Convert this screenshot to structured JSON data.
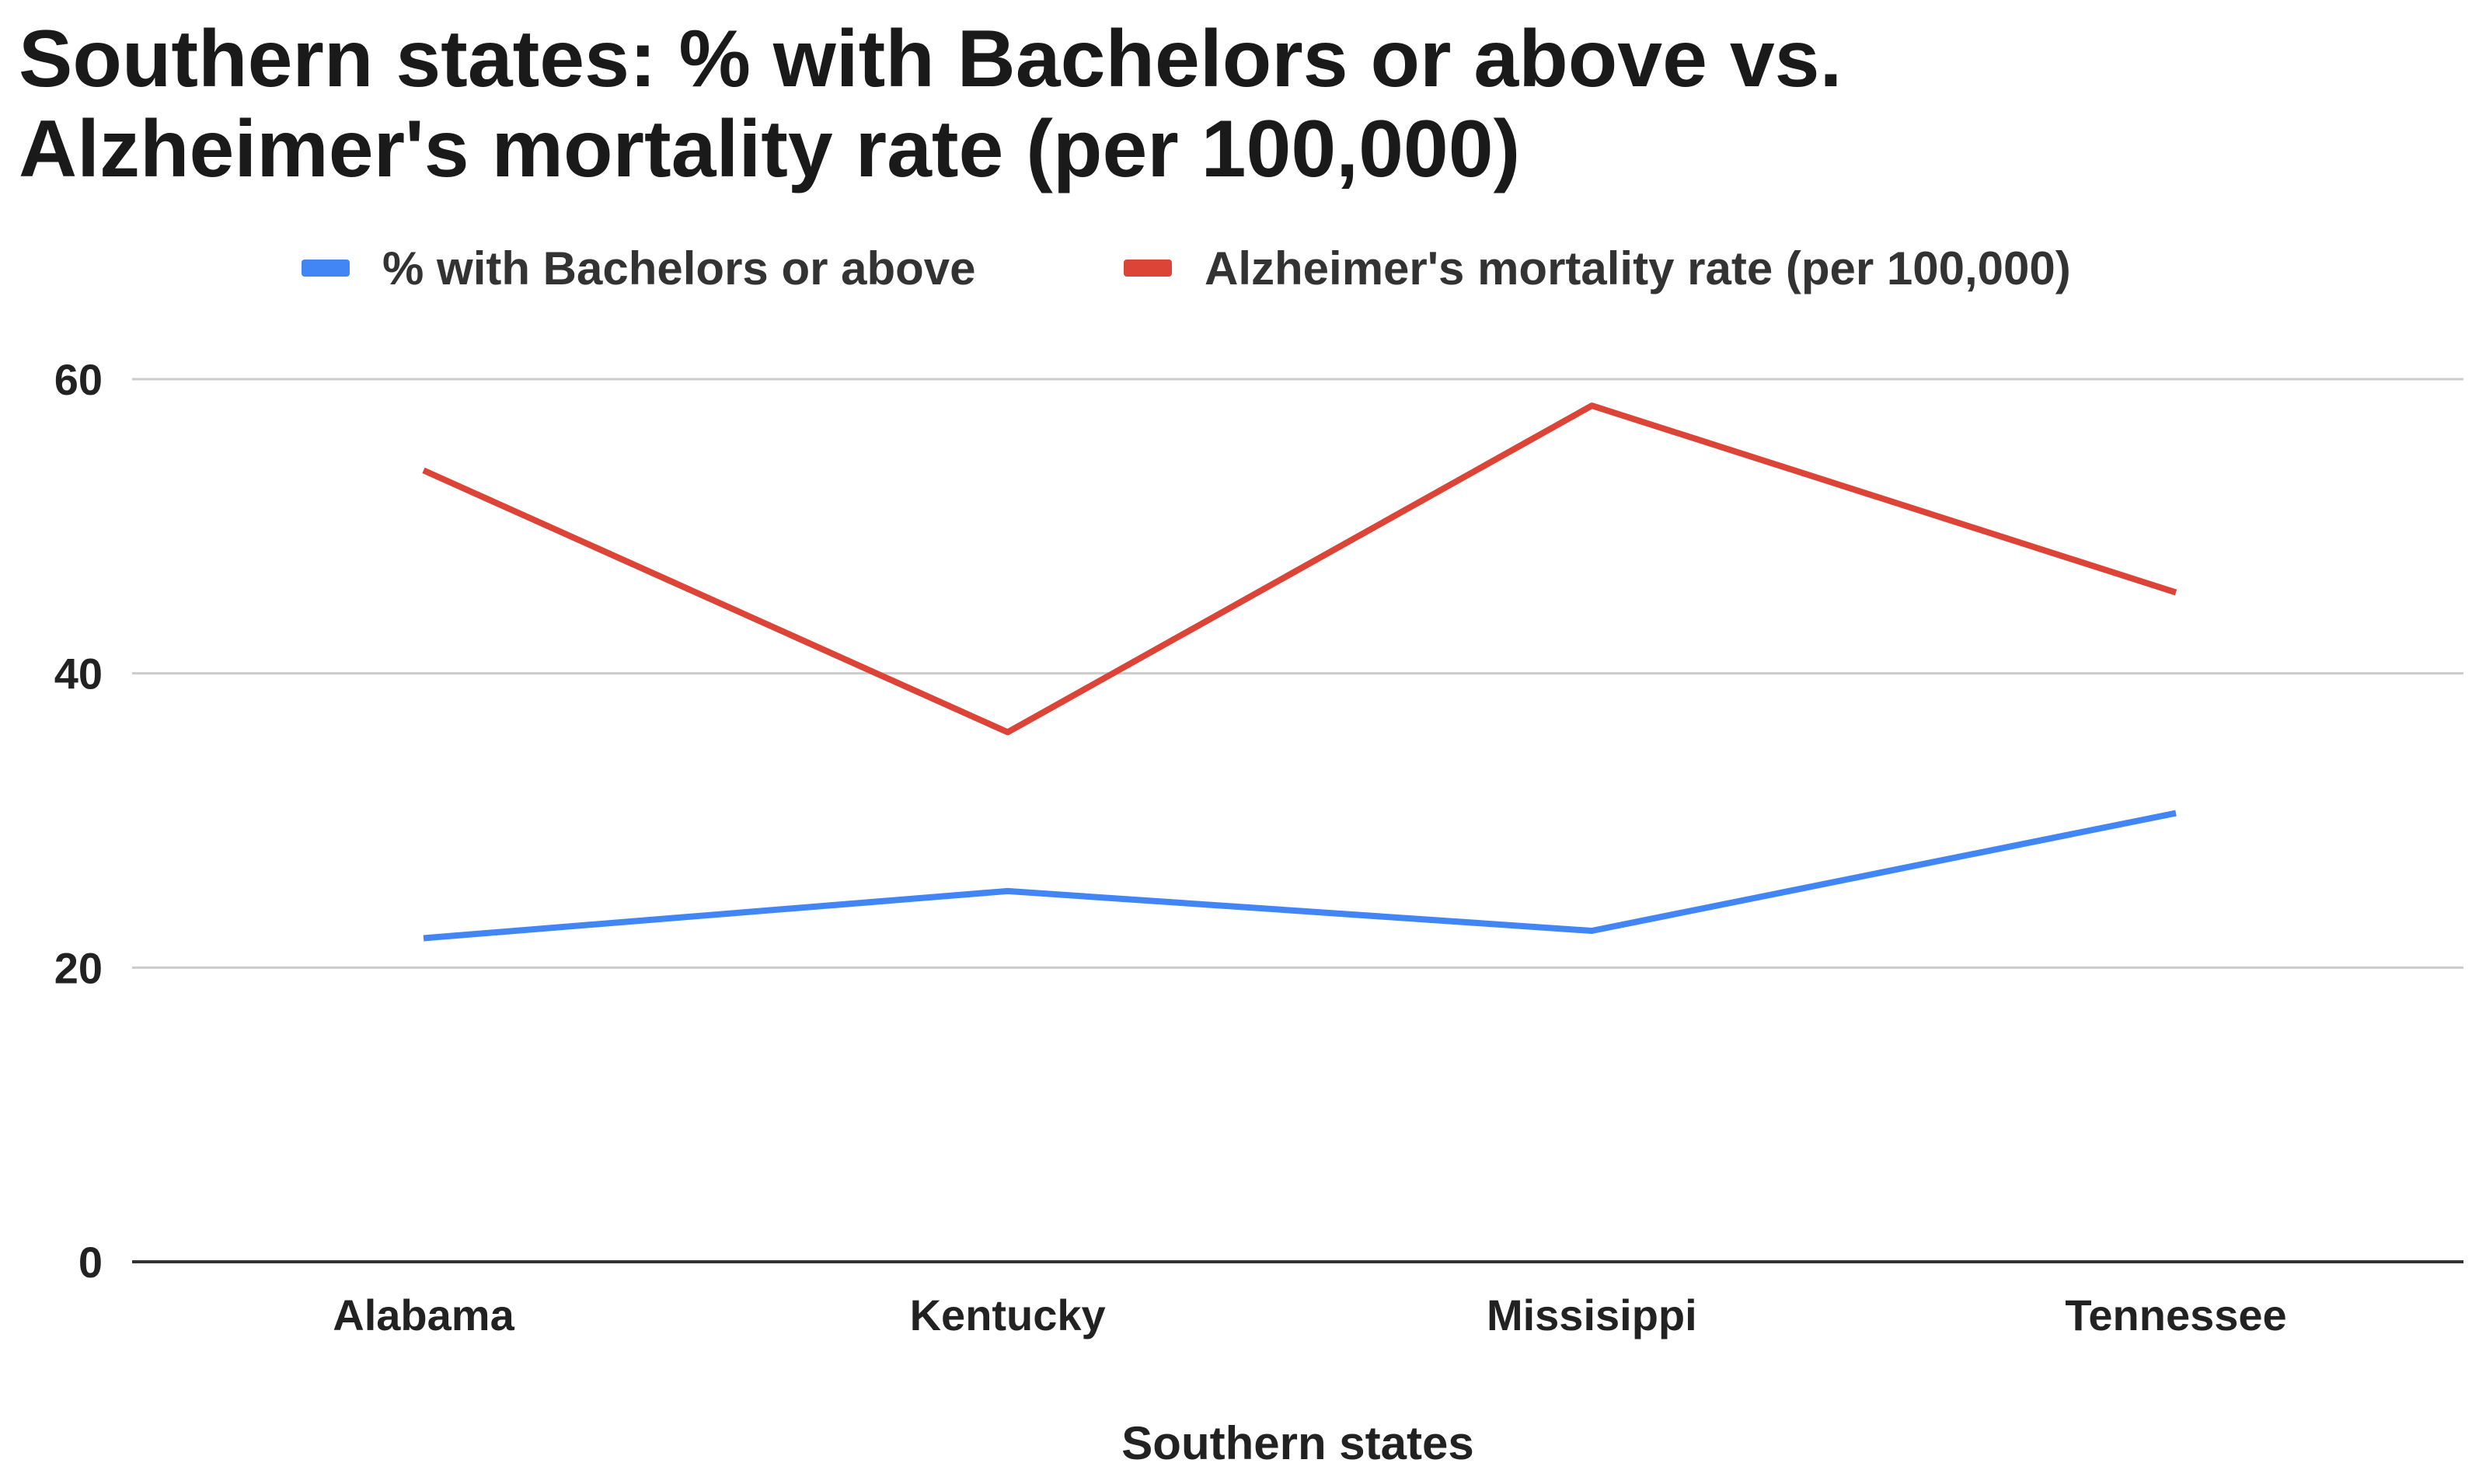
{
  "chart_data": {
    "type": "line",
    "title_lines": [
      "Southern states: % with Bachelors or above vs.",
      "Alzheimer's mortality rate (per 100,000)"
    ],
    "categories": [
      "Alabama",
      "Kentucky",
      "Missisippi",
      "Tennessee"
    ],
    "series": [
      {
        "name": "% with Bachelors or above",
        "color": "#4285f4",
        "values": [
          22,
          25.2,
          22.5,
          30.5
        ]
      },
      {
        "name": "Alzheimer's mortality rate (per 100,000)",
        "color": "#db4437",
        "values": [
          53.8,
          36,
          58.2,
          45.5
        ]
      }
    ],
    "xlabel": "Southern states",
    "ylabel": "",
    "ylim": [
      0,
      60
    ],
    "yticks": [
      "0",
      "20",
      "40",
      "60"
    ],
    "grid": true,
    "legend_position": "top-center",
    "colors": {
      "gridline": "#cccccc",
      "baseline": "#333333"
    }
  }
}
